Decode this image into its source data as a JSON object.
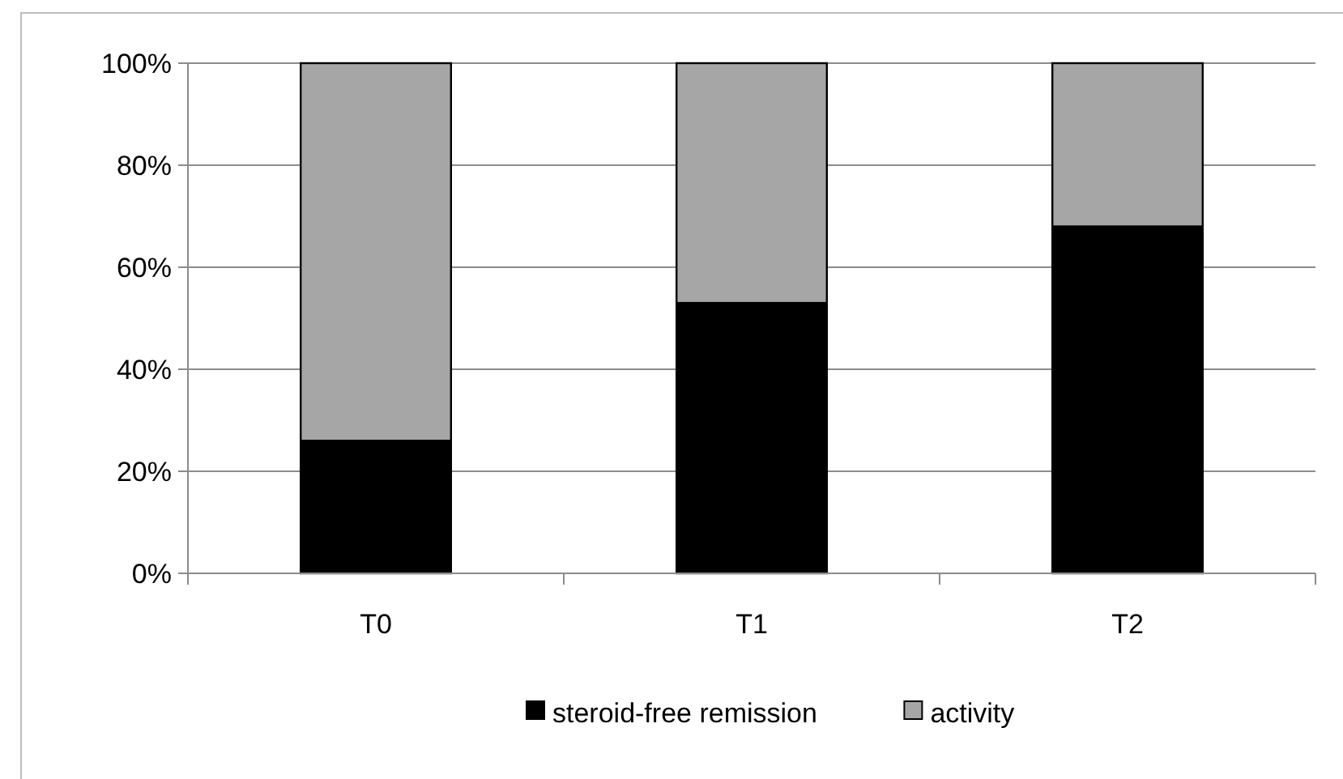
{
  "chart_data": {
    "type": "bar",
    "stacked": true,
    "categories": [
      "T0",
      "T1",
      "T2"
    ],
    "series": [
      {
        "name": "steroid-free remission",
        "color": "#000000",
        "values": [
          26,
          53,
          68
        ]
      },
      {
        "name": "activity",
        "color": "#a6a6a6",
        "values": [
          74,
          47,
          32
        ]
      }
    ],
    "ylim": [
      0,
      100
    ],
    "yticks": [
      {
        "value": 0,
        "label": "0%"
      },
      {
        "value": 20,
        "label": "20%"
      },
      {
        "value": 40,
        "label": "40%"
      },
      {
        "value": 60,
        "label": "60%"
      },
      {
        "value": 80,
        "label": "80%"
      },
      {
        "value": 100,
        "label": "100%"
      }
    ],
    "grid": "y",
    "legend": "bottom"
  }
}
